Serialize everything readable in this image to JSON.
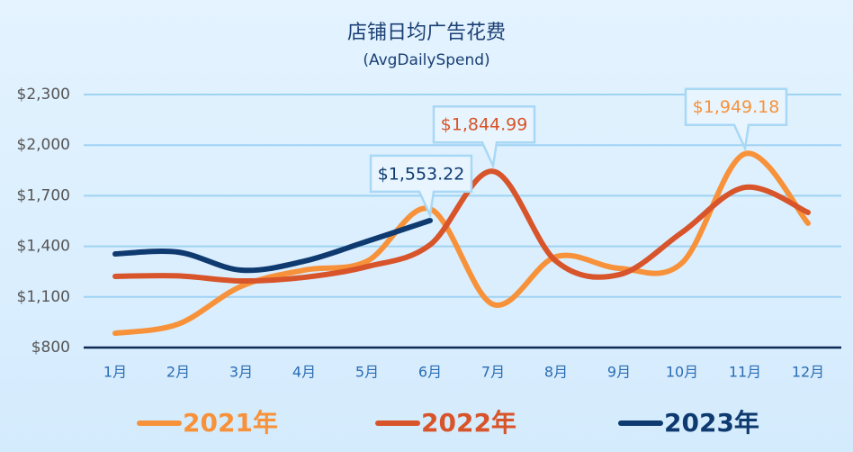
{
  "chart_data": {
    "type": "line",
    "title": "店铺日均广告花费",
    "subtitle": "(AvgDailySpend)",
    "categories": [
      "1月",
      "2月",
      "3月",
      "4月",
      "5月",
      "6月",
      "7月",
      "8月",
      "9月",
      "10月",
      "11月",
      "12月"
    ],
    "series": [
      {
        "name": "2021年",
        "color": "#f7923a",
        "values": [
          885,
          939,
          1163,
          1259,
          1312,
          1622,
          1056,
          1339,
          1270,
          1302,
          1949.18,
          1537
        ],
        "value_labels": [
          null,
          null,
          null,
          null,
          null,
          null,
          null,
          null,
          null,
          null,
          "$1,949.18",
          null
        ]
      },
      {
        "name": "2022年",
        "color": "#d8542a",
        "values": [
          1222,
          1225,
          1195,
          1216,
          1280,
          1409,
          1844.99,
          1312,
          1232,
          1483,
          1750,
          1601
        ],
        "value_labels": [
          null,
          null,
          null,
          null,
          null,
          null,
          "$1,844.99",
          null,
          null,
          null,
          null,
          null
        ]
      },
      {
        "name": "2023年",
        "color": "#0e3a70",
        "values": [
          1355,
          1366,
          1259,
          1312,
          1430,
          1553.22,
          null,
          null,
          null,
          null,
          null,
          null
        ],
        "value_labels": [
          null,
          null,
          null,
          null,
          null,
          "$1,553.22",
          null,
          null,
          null,
          null,
          null,
          null
        ]
      }
    ],
    "ylim": [
      800,
      2300
    ],
    "yticks": [
      {
        "value": 800,
        "label": "$800"
      },
      {
        "value": 1100,
        "label": "$1,100"
      },
      {
        "value": 1400,
        "label": "$1,400"
      },
      {
        "value": 1700,
        "label": "$1,700"
      },
      {
        "value": 2000,
        "label": "$2,000"
      },
      {
        "value": 2300,
        "label": "$2,300"
      }
    ],
    "grid": true,
    "legend": "bottom"
  }
}
